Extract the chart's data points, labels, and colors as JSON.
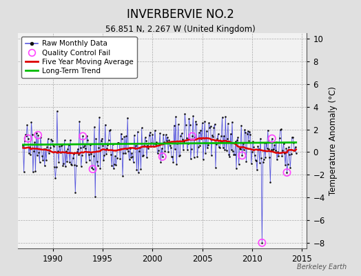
{
  "title": "INVERBERVIE NO.2",
  "subtitle": "56.851 N, 2.267 W (United Kingdom)",
  "ylabel": "Temperature Anomaly (°C)",
  "watermark": "Berkeley Earth",
  "xlim": [
    1986.5,
    2015.5
  ],
  "ylim": [
    -8.5,
    10.5
  ],
  "yticks": [
    -8,
    -6,
    -4,
    -2,
    0,
    2,
    4,
    6,
    8,
    10
  ],
  "xticks": [
    1990,
    1995,
    2000,
    2005,
    2010,
    2015
  ],
  "bg_color": "#e0e0e0",
  "plot_bg_color": "#f2f2f2",
  "raw_color": "#5555dd",
  "dot_color": "#111111",
  "ma_color": "#dd0000",
  "trend_color": "#00bb00",
  "qc_color": "#ff44ff",
  "legend_items": [
    "Raw Monthly Data",
    "Quality Control Fail",
    "Five Year Moving Average",
    "Long-Term Trend"
  ],
  "seed": 17,
  "n_months": 330,
  "start_year": 1987.0,
  "qc_fail_indices": [
    6,
    18,
    72,
    84,
    168,
    204,
    264,
    300,
    318
  ],
  "qc_fail_values": [
    1.2,
    1.5,
    1.4,
    -1.5,
    -0.4,
    1.4,
    -0.3,
    1.2,
    -1.8
  ],
  "extreme_idx": 288,
  "extreme_val": -8.0,
  "noise_scale": 1.1,
  "trend_base": 0.65,
  "trend_slope": 0.003
}
